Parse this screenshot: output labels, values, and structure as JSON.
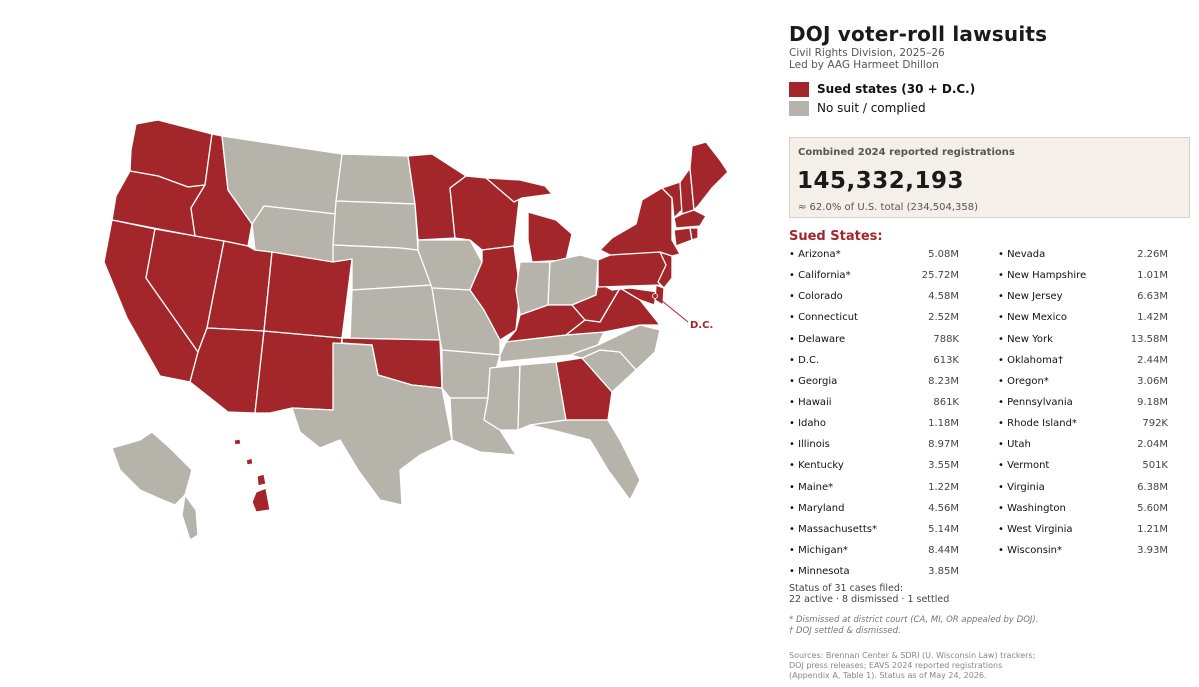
{
  "title": "DOJ voter-roll lawsuits",
  "subtitle_1": "Civil Rights Division, 2025–26",
  "subtitle_2": "Led by AAG Harmeet Dhillon",
  "colors": {
    "sued": "#a3262a",
    "no_suit": "#b5b3aa",
    "panel_bg": "#f4efe8"
  },
  "legend": {
    "sued_label": "Sued states (30 + D.C.)",
    "no_suit_label": "No suit / complied"
  },
  "stat": {
    "caption": "Combined 2024 reported registrations",
    "number": "145,332,193",
    "note": "≈ 62.0% of U.S. total (234,504,358)"
  },
  "sued_heading": "Sued States:",
  "states_left": [
    {
      "name": "• Arizona*",
      "value": "5.08M"
    },
    {
      "name": "• California*",
      "value": "25.72M"
    },
    {
      "name": "• Colorado",
      "value": "4.58M"
    },
    {
      "name": "• Connecticut",
      "value": "2.52M"
    },
    {
      "name": "• Delaware",
      "value": "788K"
    },
    {
      "name": "• D.C.",
      "value": "613K"
    },
    {
      "name": "• Georgia",
      "value": "8.23M"
    },
    {
      "name": "• Hawaii",
      "value": "861K"
    },
    {
      "name": "• Idaho",
      "value": "1.18M"
    },
    {
      "name": "• Illinois",
      "value": "8.97M"
    },
    {
      "name": "• Kentucky",
      "value": "3.55M"
    },
    {
      "name": "• Maine*",
      "value": "1.22M"
    },
    {
      "name": "• Maryland",
      "value": "4.56M"
    },
    {
      "name": "• Massachusetts*",
      "value": "5.14M"
    },
    {
      "name": "• Michigan*",
      "value": "8.44M"
    },
    {
      "name": "• Minnesota",
      "value": "3.85M"
    }
  ],
  "states_right": [
    {
      "name": "• Nevada",
      "value": "2.26M"
    },
    {
      "name": "• New Hampshire",
      "value": "1.01M"
    },
    {
      "name": "• New Jersey",
      "value": "6.63M"
    },
    {
      "name": "• New Mexico",
      "value": "1.42M"
    },
    {
      "name": "• New York",
      "value": "13.58M"
    },
    {
      "name": "• Oklahoma†",
      "value": "2.44M"
    },
    {
      "name": "• Oregon*",
      "value": "3.06M"
    },
    {
      "name": "• Pennsylvania",
      "value": "9.18M"
    },
    {
      "name": "• Rhode Island*",
      "value": "792K"
    },
    {
      "name": "• Utah",
      "value": "2.04M"
    },
    {
      "name": "• Vermont",
      "value": "501K"
    },
    {
      "name": "• Virginia",
      "value": "6.38M"
    },
    {
      "name": "• Washington",
      "value": "5.60M"
    },
    {
      "name": "• West Virginia",
      "value": "1.21M"
    },
    {
      "name": "• Wisconsin*",
      "value": "3.93M"
    }
  ],
  "status_1": "Status of 31 cases filed:",
  "status_2": "22 active · 8 dismissed · 1 settled",
  "footnote_1": "* Dismissed at district court (CA, MI, OR appealed by DOJ).",
  "footnote_2": "† DOJ settled & dismissed.",
  "source_1": "Sources: Brennan Center & SDRI (U. Wisconsin Law) trackers;",
  "source_2": "DOJ press releases; EAVS 2024 reported registrations",
  "source_3": "(Appendix A, Table 1). Status as of May 24, 2026.",
  "map": {
    "dc_label": "D.C.",
    "sued_states": [
      "WA",
      "OR",
      "CA",
      "NV",
      "ID",
      "UT",
      "AZ",
      "NM",
      "CO",
      "OK",
      "MN",
      "WI",
      "IL",
      "MI",
      "KY",
      "GA",
      "PA",
      "NY",
      "VT",
      "NH",
      "ME",
      "MA",
      "RI",
      "CT",
      "NJ",
      "DE",
      "MD",
      "VA",
      "WV",
      "HI",
      "DC"
    ]
  }
}
